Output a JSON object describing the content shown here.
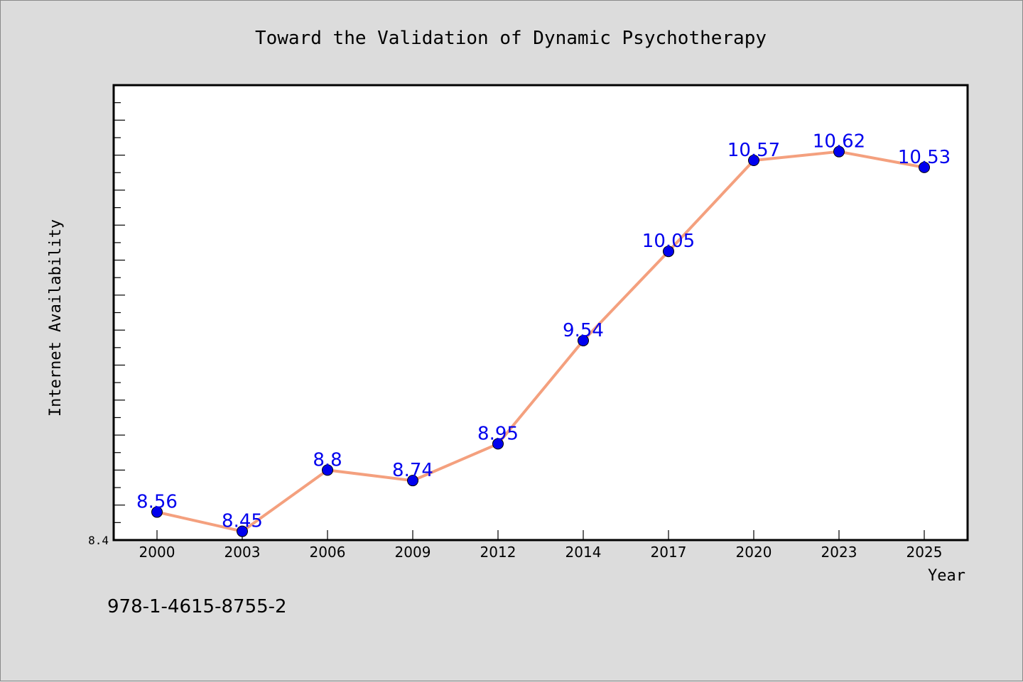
{
  "footer_text": "978-1-4615-8755-2",
  "chart_data": {
    "type": "line",
    "title": "Toward the Validation of Dynamic Psychotherapy",
    "xlabel": "Year",
    "ylabel": "Internet Availability",
    "categories": [
      "2000",
      "2003",
      "2006",
      "2009",
      "2012",
      "2014",
      "2017",
      "2020",
      "2023",
      "2025"
    ],
    "series": [
      {
        "values": [
          8.56,
          8.45,
          8.8,
          8.74,
          8.95,
          9.54,
          10.05,
          10.57,
          10.62,
          10.53
        ],
        "labels": [
          "8.56",
          "8.45",
          "8.8",
          "8.74",
          "8.95",
          "9.54",
          "10.05",
          "10.57",
          "10.62",
          "10.53"
        ],
        "line_color": "#f4a07e",
        "marker_color": "#0000ee",
        "label_color": "#0000ee"
      }
    ],
    "ylim": [
      8.4,
      11.0
    ],
    "y_tick_labels": [
      "8.4"
    ],
    "grid": false,
    "legend": "none",
    "background_color": "#dcdcdc",
    "plot_background_color": "#ffffff"
  }
}
